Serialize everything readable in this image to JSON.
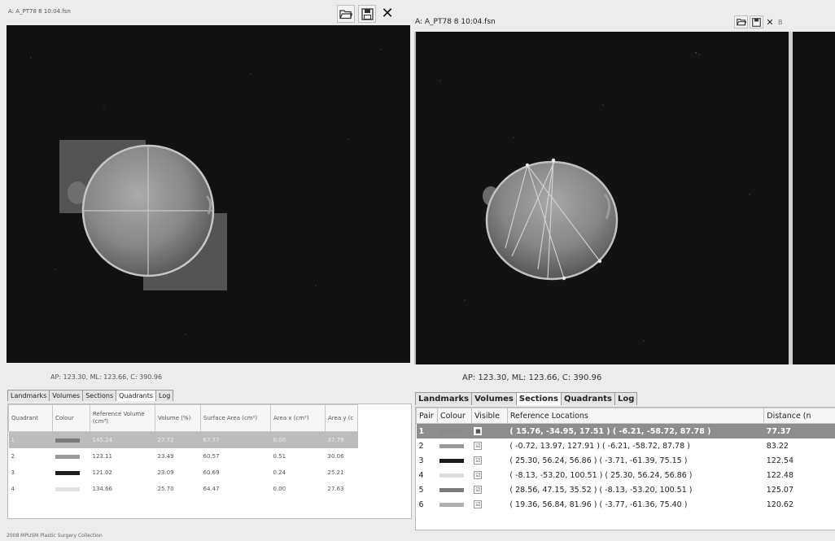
{
  "left_pane": {
    "title": "A: A_PT78  8 10:04.fsn",
    "status": "AP:  123.30,  ML:  123.66,  C:  390.96",
    "tabs": [
      "Landmarks",
      "Volumes",
      "Sections",
      "Quadrants",
      "Log"
    ],
    "active_tab": "Quadrants",
    "table": {
      "columns": [
        "Quadrant",
        "Colour",
        "Reference Volume (cm³)",
        "Volume (%)",
        "Surface Area (cm²)",
        "Area x (cm²)",
        "Area y (c"
      ],
      "rows": [
        {
          "quadrant": "1",
          "colour": "#7a7a7a",
          "ref_volume": "145.24",
          "volume_pct": "27.72",
          "surface_area": "67.77",
          "area_x": "0.00",
          "area_y": "37.79",
          "selected": true
        },
        {
          "quadrant": "2",
          "colour": "#9a9a9a",
          "ref_volume": "123.11",
          "volume_pct": "23.49",
          "surface_area": "60.57",
          "area_x": "0.51",
          "area_y": "30.06",
          "selected": false
        },
        {
          "quadrant": "3",
          "colour": "#1e1e1e",
          "ref_volume": "121.02",
          "volume_pct": "23.09",
          "surface_area": "60.69",
          "area_x": "0.24",
          "area_y": "25.21",
          "selected": false
        },
        {
          "quadrant": "4",
          "colour": "#e2e2e2",
          "ref_volume": "134.66",
          "volume_pct": "25.70",
          "surface_area": "64.47",
          "area_x": "0.00",
          "area_y": "27.63",
          "selected": false
        }
      ]
    }
  },
  "right_pane": {
    "title": "A: A_PT78  8 10:04.fsn",
    "status": "AP:  123.30,  ML:  123.66,  C:  390.96",
    "extra": "B",
    "tabs": [
      "Landmarks",
      "Volumes",
      "Sections",
      "Quadrants",
      "Log"
    ],
    "active_tab": "Sections",
    "table": {
      "columns": [
        "Pair",
        "Colour",
        "Visible",
        "Reference Locations",
        "Distance (n"
      ],
      "rows": [
        {
          "pair": "1",
          "colour": "#8a8a8a",
          "visible": "■",
          "locations": "( 15.76, -34.95,  17.51 ) ( -6.21, -58.72,  87.78 )",
          "distance": "77.37",
          "selected": true
        },
        {
          "pair": "2",
          "colour": "#9a9a9a",
          "visible": "☑",
          "locations": "( -0.72,  13.97, 127.91 ) ( -6.21, -58.72,  87.78 )",
          "distance": "83.22",
          "selected": false
        },
        {
          "pair": "3",
          "colour": "#1a1a1a",
          "visible": "☑",
          "locations": "( 25.30,  56.24,  56.86 ) ( -3.71, -61.39,  75.15 )",
          "distance": "122.54",
          "selected": false
        },
        {
          "pair": "4",
          "colour": "#dcdcdc",
          "visible": "☑",
          "locations": "( -8.13, -53.20, 100.51 ) ( 25.30,  56.24,  56.86 )",
          "distance": "122.48",
          "selected": false
        },
        {
          "pair": "5",
          "colour": "#7a7a7a",
          "visible": "☑",
          "locations": "( 28.56,  47.15,  35.52 ) ( -8.13, -53.20, 100.51 )",
          "distance": "125.07",
          "selected": false
        },
        {
          "pair": "6",
          "colour": "#b0b0b0",
          "visible": "☑",
          "locations": "( 19.36,  56.84,  81.96 ) ( -3.77, -61.36,  75.40 )",
          "distance": "120.62",
          "selected": false
        }
      ]
    }
  },
  "footer": "2008 MPUSM Plastic Surgery Collection",
  "icons": [
    "folder-open-icon",
    "save-icon",
    "close-icon"
  ]
}
